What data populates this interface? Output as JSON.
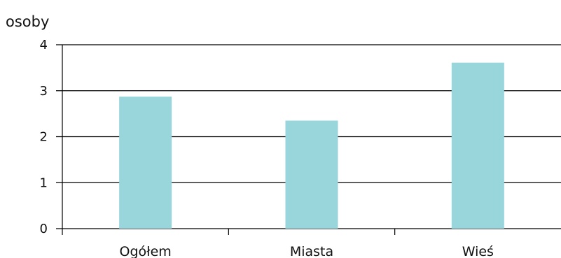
{
  "chart_data": {
    "type": "bar",
    "title": "",
    "xlabel": "",
    "ylabel": "osoby",
    "categories": [
      "Ogółem",
      "Miasta",
      "Wieś"
    ],
    "values": [
      2.87,
      2.35,
      3.61
    ],
    "ylim": [
      0,
      4
    ],
    "yticks": [
      "0",
      "1",
      "2",
      "3",
      "4"
    ],
    "grid": true,
    "legend": "none",
    "colors": {
      "bar": "#98d6dc",
      "grid": "#000000",
      "text": "#111111"
    }
  }
}
